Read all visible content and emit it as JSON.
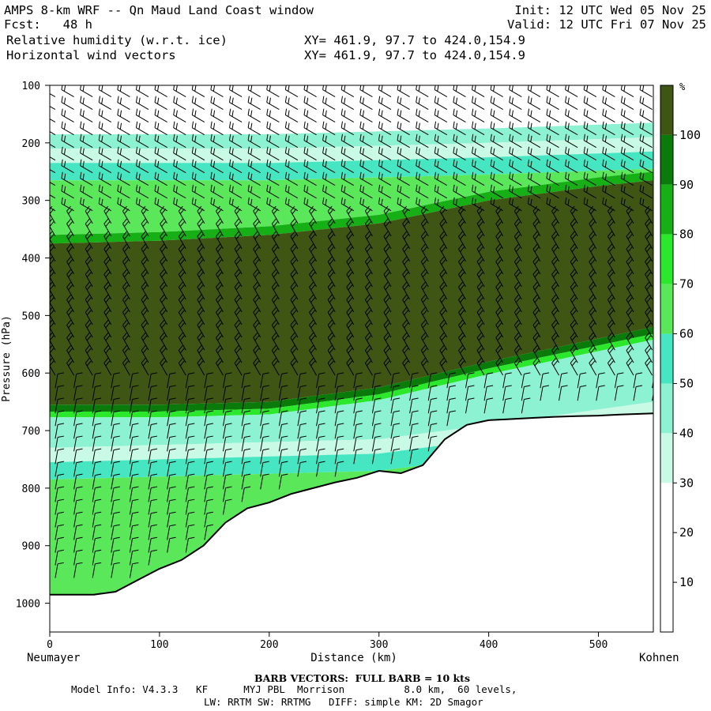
{
  "header": {
    "title": "AMPS 8-km WRF -- Qn Maud Land Coast window",
    "fcst": "Fcst:   48 h",
    "field1": "Relative humidity (w.r.t. ice)",
    "field2": "Horizontal wind vectors",
    "xy1": "XY= 461.9, 97.7 to 424.0,154.9",
    "xy2": "XY= 461.9, 97.7 to 424.0,154.9",
    "init": "Init: 12 UTC Wed 05 Nov 25",
    "valid": "Valid: 12 UTC Fri 07 Nov 25"
  },
  "chart_data": {
    "type": "heatmap",
    "subtype": "vertical cross-section",
    "xlabel": "Distance (km)",
    "ylabel": "Pressure (hPa)",
    "xlim": [
      0,
      550
    ],
    "ylim": [
      1050,
      100
    ],
    "x_ticks": [
      0,
      100,
      200,
      300,
      400,
      500
    ],
    "y_ticks": [
      100,
      200,
      300,
      400,
      500,
      600,
      700,
      800,
      900,
      1000
    ],
    "start_label": "Neumayer",
    "end_label": "Kohnen",
    "colorbar": {
      "unit": "%",
      "levels": [
        10,
        20,
        30,
        40,
        50,
        60,
        70,
        80,
        90,
        100
      ],
      "colors": [
        "#ffffff",
        "#ffffff",
        "#ffffff",
        "#c8fae6",
        "#8cf2d2",
        "#46e6c2",
        "#5ae85a",
        "#2ce82c",
        "#16b016",
        "#0a7a0a",
        "#3e5514"
      ]
    },
    "terrain_surface": {
      "x": [
        0,
        20,
        40,
        60,
        80,
        100,
        120,
        140,
        160,
        180,
        200,
        220,
        240,
        260,
        280,
        300,
        320,
        340,
        360,
        380,
        400,
        420,
        440,
        460,
        480,
        500,
        520,
        550
      ],
      "p": [
        985,
        985,
        985,
        980,
        960,
        940,
        925,
        900,
        860,
        835,
        825,
        810,
        800,
        790,
        782,
        770,
        774,
        760,
        715,
        690,
        682,
        680,
        678,
        676,
        675,
        674,
        672,
        670
      ]
    },
    "rh_layers": [
      {
        "name": "moist-core",
        "rh": 100,
        "top_x": [
          0,
          100,
          200,
          300,
          400,
          500,
          550
        ],
        "top_p": [
          385,
          380,
          370,
          350,
          310,
          285,
          275
        ],
        "bottom_x": [
          0,
          100,
          200,
          300,
          400,
          500,
          550
        ],
        "bottom_p": [
          655,
          655,
          650,
          625,
          580,
          540,
          520
        ]
      },
      {
        "name": "dry-lower-layer",
        "rh": 30,
        "top_x": [
          0,
          100,
          200,
          300,
          400,
          550
        ],
        "top_p": [
          730,
          725,
          720,
          715,
          690,
          650
        ]
      },
      {
        "name": "dry-upper-layer",
        "rh": 30,
        "top_x": [
          0,
          200,
          400,
          550
        ],
        "top_p": [
          230,
          230,
          220,
          210
        ]
      }
    ],
    "wind_barbs": {
      "note": "FULL BARB = 10 kts",
      "upper_direction": "westerly",
      "mid_direction": "south-westerly",
      "low_direction": "southerly"
    }
  },
  "footer": {
    "barb_note": "BARB VECTORS:  FULL BARB = 10 kts",
    "model_info": "Model Info: V4.3.3   KF      MYJ PBL  Morrison          8.0 km,  60 levels,",
    "physics": "LW: RRTM SW: RRTMG   DIFF: simple KM: 2D Smagor"
  }
}
